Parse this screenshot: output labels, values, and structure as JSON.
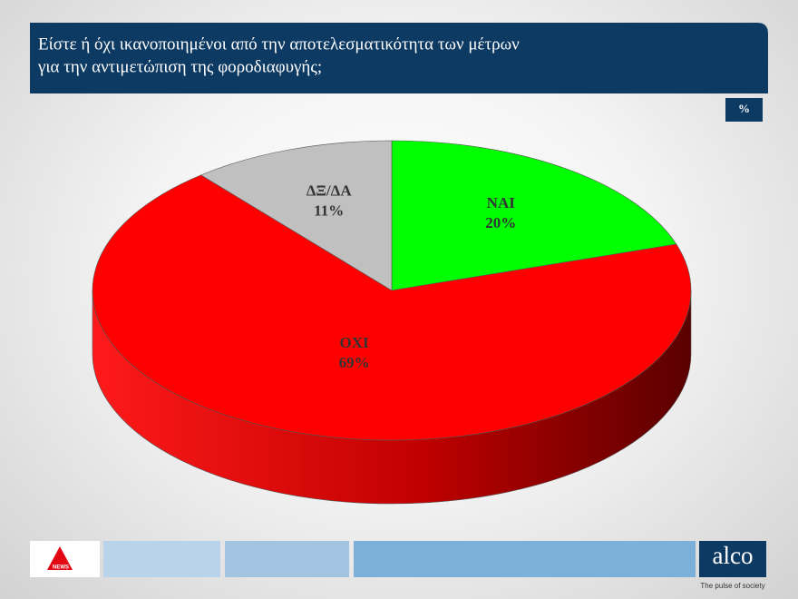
{
  "chart_data": {
    "type": "pie3d",
    "title": [
      "Είστε ή όχι ικανοποιημένοι από την αποτελεσματικότητα των μέτρων",
      "για την αντιμετώπιση της φοροδιαφυγής;"
    ],
    "unit": "%",
    "categories": [
      "ΝΑΙ",
      "ΟΧΙ",
      "ΔΞ/ΔΑ"
    ],
    "values": [
      20,
      69,
      11
    ],
    "value_labels": [
      "20%",
      "69%",
      "11%"
    ],
    "colors": [
      "#00ff00",
      "#ff0000",
      "#c0c0c0"
    ]
  },
  "footer": {
    "news_logo": "NEWS",
    "brand": "alco",
    "tagline": "The pulse of society"
  }
}
